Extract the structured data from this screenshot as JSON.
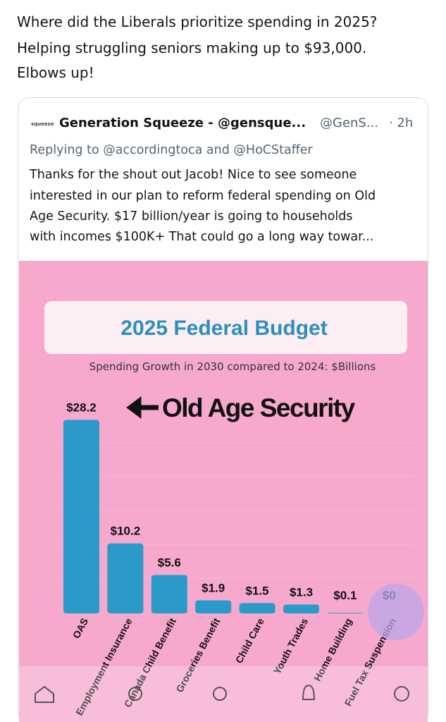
{
  "tweet": {
    "text": [
      "Where did the Liberals prioritize spending in 2025?",
      "Helping struggling seniors making up to $93,000.",
      "Elbows up!"
    ]
  },
  "quote": {
    "logo": "squeeze",
    "author": "Generation Squeeze - @gensque...",
    "handle": "@GenS...",
    "time": "· 2h",
    "replying": "Replying to @accordingtoca and @HoCStaffer",
    "text": [
      "Thanks for the shout out Jacob! Nice to see someone",
      "interested in our plan to reform federal spending on Old",
      "Age Security. $17 billion/year is going to households",
      "with incomes $100K+ That could go a long way towar..."
    ]
  },
  "chart_data": {
    "type": "bar",
    "title": "2025 Federal Budget",
    "subtitle": "Spending Growth in 2030 compared to 2024: $Billions",
    "annotation": "Old Age Security",
    "categories": [
      "OAS",
      "Employment Insurance",
      "Canada Child Benefit",
      "Groceries Benefit",
      "Child Care",
      "Youth Trades",
      "Home Building",
      "Fuel Tax Suspension"
    ],
    "values": [
      28.2,
      10.2,
      5.6,
      1.9,
      1.5,
      1.3,
      0.1,
      0
    ],
    "value_labels": [
      "$28.2",
      "$10.2",
      "$5.6",
      "$1.9",
      "$1.5",
      "$1.3",
      "$0.1",
      "$0"
    ],
    "color": "#2a9ac9",
    "ylim": [
      0,
      30
    ]
  }
}
